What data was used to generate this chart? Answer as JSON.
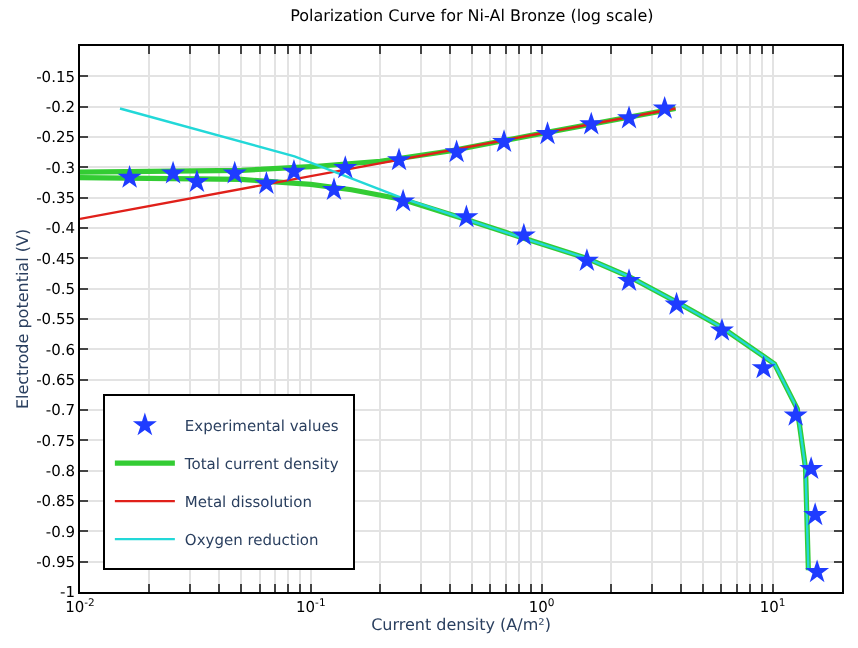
{
  "chart_data": {
    "type": "line",
    "title": "Polarization Curve for Ni-Al Bronze (log scale)",
    "xlabel": "Current density (A/m²)",
    "ylabel": "Electrode potential (V)",
    "log": "x",
    "grid": true,
    "legend": "bottom left",
    "xlim": [
      0.01,
      20
    ],
    "ylim": [
      -1,
      -0.1
    ],
    "xticks": [
      {
        "value": 0.01,
        "label": "10$^{-2}$"
      },
      {
        "value": 0.02,
        "label": null
      },
      {
        "value": 0.03,
        "label": null
      },
      {
        "value": 0.04,
        "label": null
      },
      {
        "value": 0.05,
        "label": null
      },
      {
        "value": 0.06,
        "label": null
      },
      {
        "value": 0.07,
        "label": null
      },
      {
        "value": 0.08,
        "label": null
      },
      {
        "value": 0.09,
        "label": null
      },
      {
        "value": 0.1,
        "label": "10$^{-1}$"
      },
      {
        "value": 0.2,
        "label": null
      },
      {
        "value": 0.3,
        "label": null
      },
      {
        "value": 0.4,
        "label": null
      },
      {
        "value": 0.5,
        "label": null
      },
      {
        "value": 0.6,
        "label": null
      },
      {
        "value": 0.7,
        "label": null
      },
      {
        "value": 0.8,
        "label": null
      },
      {
        "value": 0.9,
        "label": null
      },
      {
        "value": 1,
        "label": "10$^{0}$"
      },
      {
        "value": 2,
        "label": null
      },
      {
        "value": 3,
        "label": null
      },
      {
        "value": 4,
        "label": null
      },
      {
        "value": 5,
        "label": null
      },
      {
        "value": 6,
        "label": null
      },
      {
        "value": 7,
        "label": null
      },
      {
        "value": 8,
        "label": null
      },
      {
        "value": 9,
        "label": null
      },
      {
        "value": 10,
        "label": "10$^{1}$"
      }
    ],
    "yticks": [
      -1,
      -0.95,
      -0.9,
      -0.85,
      -0.8,
      -0.75,
      -0.7,
      -0.65,
      -0.6,
      -0.55,
      -0.5,
      -0.45,
      -0.4,
      -0.35,
      -0.3,
      -0.25,
      -0.2,
      -0.15
    ],
    "series": [
      {
        "name": "Experimental values",
        "type": "scatter",
        "marker": "star",
        "color": "#1f3cff",
        "x": [
          0.0164,
          0.0253,
          0.0321,
          0.0468,
          0.0642,
          0.0845,
          0.126,
          0.141,
          0.241,
          0.251,
          0.428,
          0.472,
          0.687,
          0.837,
          1.06,
          1.57,
          1.64,
          2.39,
          2.39,
          3.41,
          3.84,
          6.04,
          9.15,
          12.6,
          14.7,
          15.3,
          15.6
        ],
        "values": [
          -0.317,
          -0.31,
          -0.324,
          -0.31,
          -0.327,
          -0.307,
          -0.337,
          -0.301,
          -0.288,
          -0.356,
          -0.275,
          -0.382,
          -0.258,
          -0.412,
          -0.245,
          -0.454,
          -0.229,
          -0.219,
          -0.487,
          -0.203,
          -0.526,
          -0.569,
          -0.631,
          -0.709,
          -0.797,
          -0.873,
          -0.967
        ]
      },
      {
        "name": "Total current density",
        "marker": "none",
        "color": "#33cc33",
        "x": [
          14.3,
          13.9,
          12.8,
          10.2,
          6.04,
          3.84,
          2.39,
          1.57,
          0.837,
          0.472,
          0.25,
          0.15,
          0.1,
          0.05,
          0.01,
          null,
          0.01,
          0.05,
          0.1,
          0.2,
          0.4,
          1,
          3.8
        ],
        "values": [
          -0.964,
          -0.796,
          -0.698,
          -0.624,
          -0.564,
          -0.522,
          -0.48,
          -0.45,
          -0.417,
          -0.386,
          -0.353,
          -0.337,
          -0.328,
          -0.32,
          -0.317,
          null,
          -0.308,
          -0.305,
          -0.299,
          -0.29,
          -0.273,
          -0.244,
          -0.203
        ]
      },
      {
        "name": "Metal dissolution",
        "marker": "none",
        "color": "#e0201a",
        "x": [
          0.01,
          3.8
        ],
        "values": [
          -0.385,
          -0.203
        ]
      },
      {
        "name": "Oxygen reduction",
        "marker": "none",
        "color": "#22d8d8",
        "x": [
          0.0149,
          0.085,
          0.246,
          0.472,
          0.837,
          1.57,
          2.39,
          3.84,
          6.04,
          10.2,
          12.8,
          13.9,
          14.3
        ],
        "values": [
          -0.203,
          -0.282,
          -0.35,
          -0.386,
          -0.417,
          -0.45,
          -0.48,
          -0.522,
          -0.564,
          -0.624,
          -0.698,
          -0.796,
          -0.964
        ]
      }
    ]
  }
}
